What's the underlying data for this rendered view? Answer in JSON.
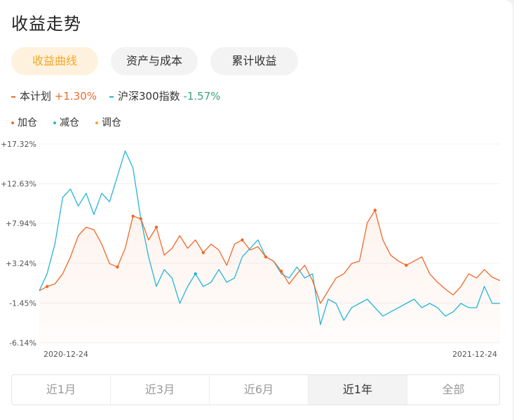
{
  "header": {
    "title": "收益走势"
  },
  "top_tabs": [
    {
      "label": "收益曲线",
      "active": true
    },
    {
      "label": "资产与成本",
      "active": false
    },
    {
      "label": "累计收益",
      "active": false
    }
  ],
  "legend": {
    "plan": {
      "name": "本计划",
      "value": "+1.30%"
    },
    "index": {
      "name": "沪深300指数",
      "value": "-1.57%"
    }
  },
  "marker_legend": [
    {
      "label": "加仓",
      "color": "#ee6a2c"
    },
    {
      "label": "减仓",
      "color": "#26b5d6"
    },
    {
      "label": "调仓",
      "color": "#f5a623"
    }
  ],
  "colors": {
    "plan_line": "#ee6a2c",
    "index_line": "#26b5d6",
    "positive": "#ee6a2c",
    "negative": "#3aa37a",
    "accent": "#f5a623"
  },
  "chart_data": {
    "type": "line",
    "y_tick_labels": [
      "+17.32%",
      "+12.63%",
      "+7.94%",
      "+3.24%",
      "-1.45%",
      "-6.14%"
    ],
    "y_ticks": [
      17.32,
      12.63,
      7.94,
      3.24,
      -1.45,
      -6.14
    ],
    "ylim": [
      -6.14,
      17.32
    ],
    "x_tick_labels": [
      "2020-12-24",
      "2021-12-24"
    ],
    "grid": true,
    "series": [
      {
        "name": "本计划",
        "color": "#ee6a2c",
        "values": [
          0.0,
          0.5,
          0.8,
          2.0,
          4.0,
          6.5,
          7.5,
          7.2,
          5.5,
          3.2,
          2.8,
          5.0,
          8.8,
          8.5,
          6.0,
          7.5,
          4.2,
          5.0,
          6.5,
          5.0,
          6.0,
          4.5,
          5.5,
          4.8,
          3.0,
          5.5,
          6.0,
          4.8,
          5.2,
          4.0,
          3.5,
          2.3,
          0.8,
          2.0,
          3.0,
          1.2,
          -1.5,
          0.0,
          1.5,
          2.0,
          3.2,
          3.5,
          8.0,
          9.5,
          6.0,
          4.2,
          3.5,
          3.0,
          3.5,
          4.0,
          2.0,
          1.0,
          0.2,
          -0.5,
          0.5,
          2.0,
          1.5,
          2.5,
          1.6,
          1.2
        ],
        "markers": [
          {
            "type": "加仓",
            "index": 1
          },
          {
            "type": "加仓",
            "index": 10
          },
          {
            "type": "加仓",
            "index": 12
          },
          {
            "type": "加仓",
            "index": 13
          },
          {
            "type": "加仓",
            "index": 15
          },
          {
            "type": "加仓",
            "index": 21
          },
          {
            "type": "加仓",
            "index": 26
          },
          {
            "type": "加仓",
            "index": 29
          },
          {
            "type": "加仓",
            "index": 31
          },
          {
            "type": "加仓",
            "index": 43
          },
          {
            "type": "加仓",
            "index": 47
          }
        ]
      },
      {
        "name": "沪深300指数",
        "color": "#26b5d6",
        "values": [
          0.0,
          2.0,
          5.5,
          11.0,
          12.0,
          10.0,
          11.5,
          9.0,
          11.5,
          10.5,
          13.5,
          16.5,
          14.5,
          8.5,
          4.0,
          0.5,
          2.5,
          1.5,
          -1.5,
          0.5,
          2.0,
          0.5,
          1.0,
          2.5,
          1.0,
          1.5,
          4.0,
          5.0,
          6.0,
          4.0,
          3.5,
          2.0,
          1.5,
          2.8,
          1.5,
          2.0,
          -4.0,
          -1.0,
          -1.5,
          -3.5,
          -2.0,
          -1.5,
          -1.0,
          -2.0,
          -3.0,
          -2.5,
          -2.0,
          -1.5,
          -1.0,
          -2.0,
          -1.5,
          -2.0,
          -3.0,
          -2.5,
          -1.5,
          -2.0,
          -2.0,
          0.5,
          -1.5,
          -1.5
        ],
        "markers": [
          {
            "type": "减仓",
            "index": 20
          }
        ]
      }
    ]
  },
  "periods": [
    {
      "label": "近1月",
      "active": false
    },
    {
      "label": "近3月",
      "active": false
    },
    {
      "label": "近6月",
      "active": false
    },
    {
      "label": "近1年",
      "active": true
    },
    {
      "label": "全部",
      "active": false
    }
  ]
}
